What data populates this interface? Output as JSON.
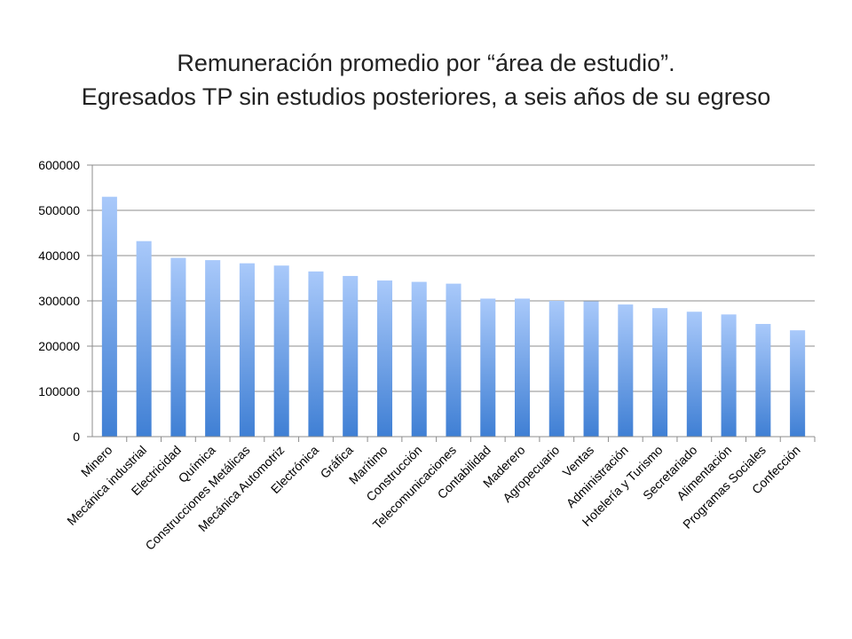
{
  "slide": {
    "title_line1": "Remuneración promedio por “área de estudio”.",
    "title_line2": "Egresados TP sin estudios posteriores, a seis años de su egreso"
  },
  "colors": {
    "bar_top": "#a9c9fa",
    "bar_bottom": "#3f7fd4",
    "grid": "#8c8c8c",
    "axis": "#8c8c8c"
  },
  "chart_data": {
    "type": "bar",
    "title": "",
    "xlabel": "",
    "ylabel": "",
    "ylim": [
      0,
      600000
    ],
    "yticks": [
      0,
      100000,
      200000,
      300000,
      400000,
      500000,
      600000
    ],
    "grid": true,
    "legend": "none",
    "categories": [
      "Minero",
      "Mecánica industrial",
      "Electricidad",
      "Química",
      "Construcciones Metálicas",
      "Mecánica Automotriz",
      "Electrónica",
      "Gráfica",
      "Marítimo",
      "Construcción",
      "Telecomunicaciones",
      "Contabilidad",
      "Maderero",
      "Agropecuario",
      "Ventas",
      "Administración",
      "Hotelería y Turismo",
      "Secretariado",
      "Alimentación",
      "Programas Sociales",
      "Confección"
    ],
    "values": [
      530000,
      432000,
      395000,
      390000,
      383000,
      378000,
      365000,
      355000,
      345000,
      342000,
      338000,
      305000,
      305000,
      300000,
      299000,
      292000,
      284000,
      276000,
      270000,
      249000,
      235000
    ]
  }
}
